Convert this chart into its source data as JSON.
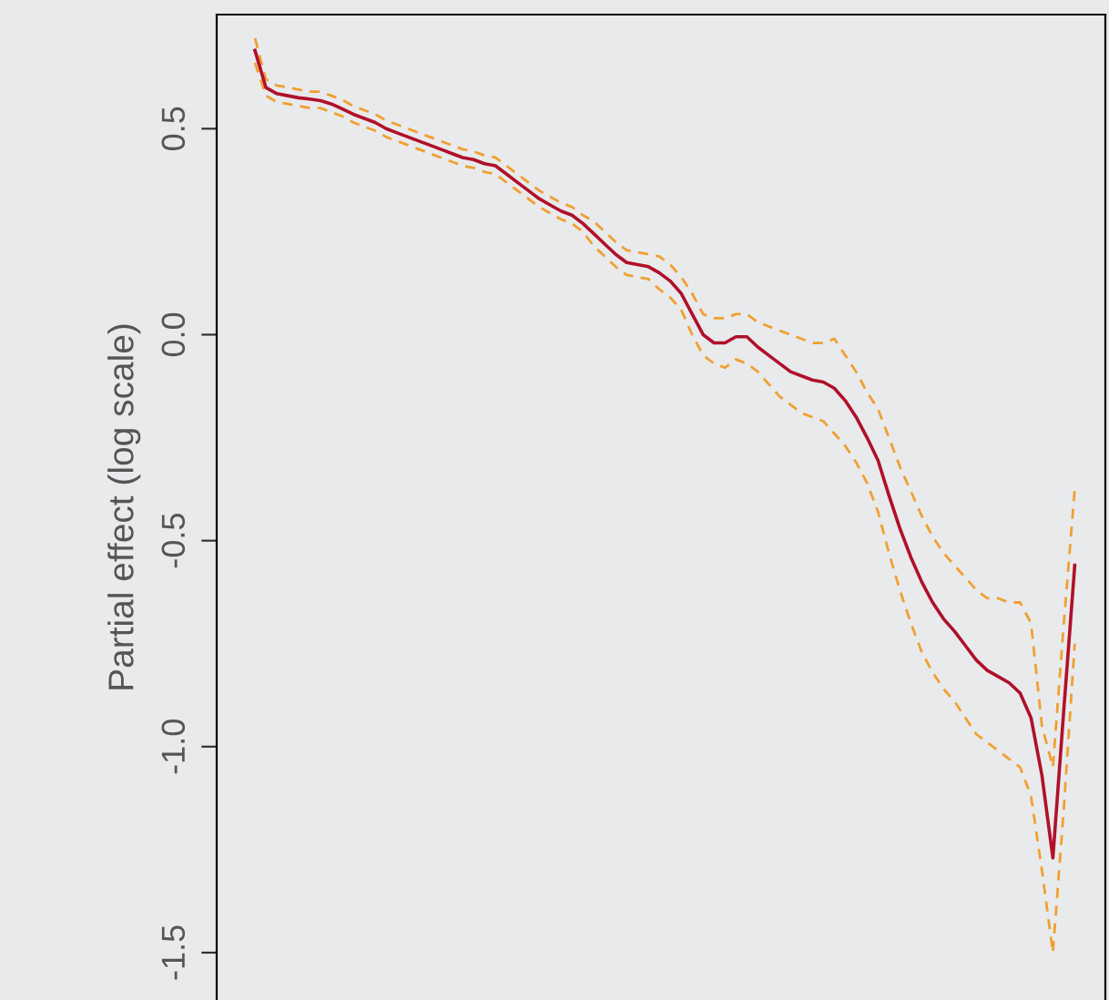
{
  "chart_data": {
    "type": "line",
    "ylabel": "Partial effect (log scale)",
    "categories": [
      null,
      null,
      null,
      null,
      null,
      null,
      null,
      null,
      null,
      null,
      null,
      null,
      null,
      null,
      null,
      null,
      null,
      null,
      null,
      null,
      null,
      null,
      null,
      null,
      null,
      null,
      null,
      null,
      null,
      null,
      null,
      null,
      null,
      null,
      null,
      null,
      null,
      null,
      null,
      null,
      null,
      null,
      null,
      null,
      null,
      null,
      null,
      null,
      null,
      null,
      null,
      null,
      null,
      null,
      null,
      null,
      null,
      null,
      null,
      null,
      null,
      null,
      null,
      null,
      null,
      null,
      null,
      null,
      null,
      null,
      null,
      null,
      null,
      null,
      null,
      null
    ],
    "series": [
      {
        "color": "#b0102a",
        "line_style": "solid",
        "values": [
          0.69,
          0.6,
          0.585,
          0.58,
          0.575,
          0.572,
          0.568,
          0.56,
          0.548,
          0.535,
          0.525,
          0.515,
          0.5,
          0.49,
          0.48,
          0.47,
          0.46,
          0.45,
          0.44,
          0.43,
          0.425,
          0.415,
          0.41,
          0.39,
          0.37,
          0.35,
          0.33,
          0.315,
          0.3,
          0.29,
          0.27,
          0.245,
          0.22,
          0.195,
          0.175,
          0.17,
          0.165,
          0.15,
          0.13,
          0.1,
          0.05,
          0.0,
          -0.02,
          -0.02,
          -0.005,
          -0.005,
          -0.03,
          -0.05,
          -0.07,
          -0.09,
          -0.1,
          -0.11,
          -0.115,
          -0.13,
          -0.16,
          -0.2,
          -0.25,
          -0.305,
          -0.39,
          -0.47,
          -0.54,
          -0.6,
          -0.65,
          -0.69,
          -0.72,
          -0.755,
          -0.79,
          -0.815,
          -0.83,
          -0.845,
          -0.87,
          -0.93,
          -1.07,
          -1.27,
          -0.91,
          -0.56
        ]
      },
      {
        "color": "#f0a030",
        "line_style": "dashed",
        "values": [
          0.72,
          0.62,
          0.605,
          0.6,
          0.595,
          0.59,
          0.59,
          0.58,
          0.57,
          0.555,
          0.545,
          0.535,
          0.52,
          0.51,
          0.5,
          0.49,
          0.48,
          0.47,
          0.46,
          0.45,
          0.445,
          0.435,
          0.43,
          0.41,
          0.39,
          0.37,
          0.35,
          0.335,
          0.32,
          0.31,
          0.29,
          0.275,
          0.25,
          0.225,
          0.205,
          0.2,
          0.195,
          0.19,
          0.17,
          0.14,
          0.1,
          0.05,
          0.04,
          0.04,
          0.05,
          0.05,
          0.03,
          0.02,
          0.01,
          0.0,
          -0.01,
          -0.02,
          -0.02,
          -0.01,
          -0.05,
          -0.09,
          -0.14,
          -0.18,
          -0.25,
          -0.32,
          -0.38,
          -0.44,
          -0.49,
          -0.53,
          -0.56,
          -0.59,
          -0.62,
          -0.64,
          -0.64,
          -0.65,
          -0.65,
          -0.7,
          -0.95,
          -1.05,
          -0.7,
          -0.375
        ]
      },
      {
        "color": "#f0a030",
        "line_style": "dashed",
        "values": [
          0.66,
          0.58,
          0.565,
          0.56,
          0.555,
          0.55,
          0.55,
          0.54,
          0.53,
          0.515,
          0.505,
          0.495,
          0.48,
          0.47,
          0.46,
          0.45,
          0.44,
          0.43,
          0.42,
          0.41,
          0.405,
          0.395,
          0.39,
          0.37,
          0.35,
          0.33,
          0.31,
          0.295,
          0.28,
          0.27,
          0.25,
          0.215,
          0.19,
          0.165,
          0.145,
          0.14,
          0.135,
          0.11,
          0.09,
          0.06,
          0.0,
          -0.05,
          -0.07,
          -0.08,
          -0.06,
          -0.07,
          -0.09,
          -0.12,
          -0.15,
          -0.17,
          -0.19,
          -0.2,
          -0.21,
          -0.24,
          -0.27,
          -0.31,
          -0.36,
          -0.43,
          -0.53,
          -0.62,
          -0.7,
          -0.77,
          -0.82,
          -0.86,
          -0.89,
          -0.93,
          -0.97,
          -0.99,
          -1.01,
          -1.03,
          -1.05,
          -1.12,
          -1.3,
          -1.5,
          -1.15,
          -0.75
        ]
      }
    ],
    "ylim": [
      -1.615,
      0.777
    ],
    "yticks": [
      {
        "value": -1.5,
        "label": "-1.5"
      },
      {
        "value": -1.0,
        "label": "-1.0"
      },
      {
        "value": -0.5,
        "label": "-0.5"
      },
      {
        "value": 0.0,
        "label": "0.0"
      },
      {
        "value": 0.5,
        "label": "0.5"
      }
    ],
    "tick_labels": "y",
    "grid": false,
    "legend": false
  }
}
